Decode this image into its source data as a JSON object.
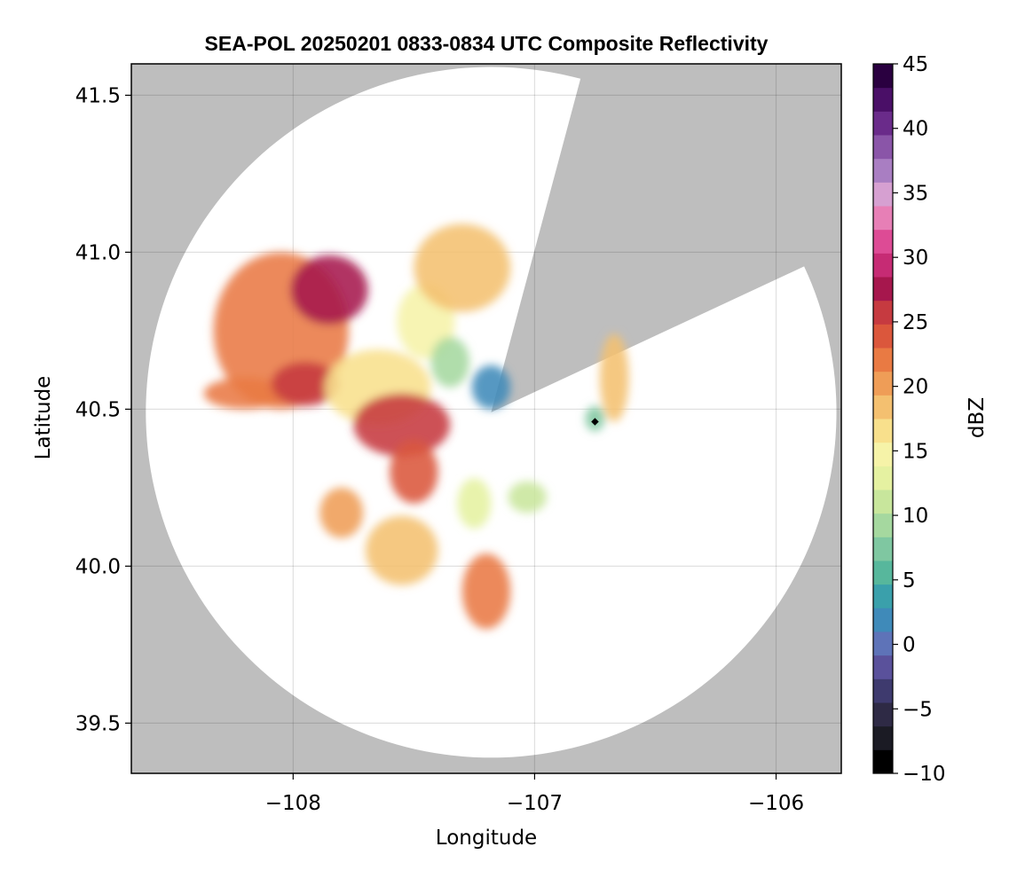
{
  "chart_data": {
    "type": "heatmap",
    "title": "SEA-POL 20250201 0833-0834 UTC Composite Reflectivity",
    "xlabel": "Longitude",
    "ylabel": "Latitude",
    "xlim": [
      -108.67,
      -105.73
    ],
    "ylim": [
      39.34,
      41.6
    ],
    "x_ticks": [
      -108,
      -107,
      -106
    ],
    "x_tick_labels": [
      "−108",
      "−107",
      "−106"
    ],
    "y_ticks": [
      39.5,
      40.0,
      40.5,
      41.0,
      41.5
    ],
    "y_tick_labels": [
      "39.5",
      "40.0",
      "40.5",
      "41.0",
      "41.5"
    ],
    "grid": true,
    "background_color": "#bebebe",
    "radar": {
      "center_lon": -107.18,
      "center_lat": 40.49,
      "range_lon_deg": 1.43,
      "range_lat_deg": 1.1,
      "blocked_sectors_deg_from_north": [
        [
          15,
          65
        ]
      ]
    },
    "colorbar": {
      "label": "dBZ",
      "min": -10,
      "max": 45,
      "ticks": [
        -10,
        -5,
        0,
        5,
        10,
        15,
        20,
        25,
        30,
        35,
        40,
        45
      ],
      "tick_labels": [
        "−10",
        "−5",
        "0",
        "5",
        "10",
        "15",
        "20",
        "25",
        "30",
        "35",
        "40",
        "45"
      ],
      "colors": [
        "#000000",
        "#1b1b24",
        "#2e2a45",
        "#3e3a6e",
        "#5a519b",
        "#5e73b8",
        "#3f8ab9",
        "#3aa0ab",
        "#57b79c",
        "#7fc7a1",
        "#a5d89f",
        "#c8e69c",
        "#e5f1a1",
        "#f6f3a8",
        "#f8e08c",
        "#f4c070",
        "#ef9d57",
        "#e97a43",
        "#db573c",
        "#c63a40",
        "#a6174d",
        "#c62b74",
        "#dd4b95",
        "#e77fb6",
        "#d6a0d1",
        "#a97ec2",
        "#8a55a8",
        "#6a2b8a",
        "#4a0f67",
        "#2a0040"
      ]
    },
    "echo_regions": [
      {
        "lon": -108.05,
        "lat": 40.75,
        "rlon": 0.28,
        "rlat": 0.25,
        "dbz": 22
      },
      {
        "lon": -107.85,
        "lat": 40.88,
        "rlon": 0.16,
        "rlat": 0.11,
        "dbz": 27
      },
      {
        "lon": -108.2,
        "lat": 40.55,
        "rlon": 0.17,
        "rlat": 0.05,
        "dbz": 22
      },
      {
        "lon": -107.95,
        "lat": 40.58,
        "rlon": 0.14,
        "rlat": 0.07,
        "dbz": 26
      },
      {
        "lon": -107.65,
        "lat": 40.57,
        "rlon": 0.22,
        "rlat": 0.12,
        "dbz": 17
      },
      {
        "lon": -107.55,
        "lat": 40.45,
        "rlon": 0.2,
        "rlat": 0.1,
        "dbz": 25
      },
      {
        "lon": -107.5,
        "lat": 40.3,
        "rlon": 0.1,
        "rlat": 0.1,
        "dbz": 24
      },
      {
        "lon": -107.45,
        "lat": 40.78,
        "rlon": 0.12,
        "rlat": 0.12,
        "dbz": 15
      },
      {
        "lon": -107.3,
        "lat": 40.95,
        "rlon": 0.2,
        "rlat": 0.14,
        "dbz": 18
      },
      {
        "lon": -107.35,
        "lat": 40.65,
        "rlon": 0.08,
        "rlat": 0.08,
        "dbz": 10
      },
      {
        "lon": -107.18,
        "lat": 40.57,
        "rlon": 0.08,
        "rlat": 0.07,
        "dbz": 1
      },
      {
        "lon": -107.25,
        "lat": 40.2,
        "rlon": 0.07,
        "rlat": 0.08,
        "dbz": 12
      },
      {
        "lon": -107.8,
        "lat": 40.17,
        "rlon": 0.09,
        "rlat": 0.08,
        "dbz": 20
      },
      {
        "lon": -107.55,
        "lat": 40.05,
        "rlon": 0.15,
        "rlat": 0.11,
        "dbz": 19
      },
      {
        "lon": -107.2,
        "lat": 39.92,
        "rlon": 0.1,
        "rlat": 0.12,
        "dbz": 22
      },
      {
        "lon": -107.03,
        "lat": 40.22,
        "rlon": 0.08,
        "rlat": 0.05,
        "dbz": 11
      },
      {
        "lon": -106.67,
        "lat": 40.6,
        "rlon": 0.06,
        "rlat": 0.14,
        "dbz": 18
      },
      {
        "lon": -106.75,
        "lat": 40.47,
        "rlon": 0.04,
        "rlat": 0.04,
        "dbz": 8
      }
    ],
    "markers": [
      {
        "lon": -106.75,
        "lat": 40.46,
        "color": "#000000"
      }
    ]
  }
}
